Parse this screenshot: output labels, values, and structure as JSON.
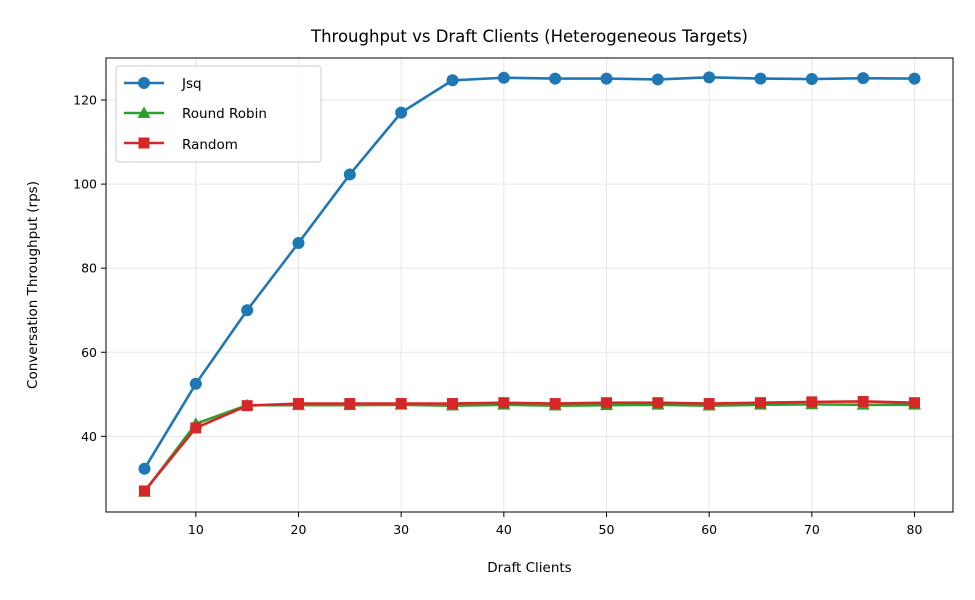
{
  "chart_data": {
    "type": "line",
    "title": "Throughput vs Draft Clients (Heterogeneous Targets)",
    "xlabel": "Draft Clients",
    "ylabel": "Conversation Throughput (rps)",
    "x": [
      5,
      10,
      15,
      20,
      25,
      30,
      35,
      40,
      45,
      50,
      55,
      60,
      65,
      70,
      75,
      80
    ],
    "xlim": [
      1.25,
      83.75
    ],
    "ylim": [
      22,
      130
    ],
    "xticks": [
      10,
      20,
      30,
      40,
      50,
      60,
      70,
      80
    ],
    "yticks": [
      40,
      60,
      80,
      100,
      120
    ],
    "grid": true,
    "legend_position": "top-left",
    "series": [
      {
        "name": "Jsq",
        "color": "#1f77b4",
        "marker": "circle",
        "values": [
          32.3,
          52.5,
          70.0,
          86.0,
          102.3,
          117.0,
          124.7,
          125.3,
          125.1,
          125.1,
          124.9,
          125.4,
          125.1,
          125.0,
          125.2,
          125.1
        ]
      },
      {
        "name": "Round Robin",
        "color": "#2ca02c",
        "marker": "triangle",
        "values": [
          26.8,
          43.0,
          47.4,
          47.4,
          47.4,
          47.5,
          47.3,
          47.5,
          47.3,
          47.4,
          47.5,
          47.3,
          47.5,
          47.6,
          47.5,
          47.5
        ]
      },
      {
        "name": "Random",
        "color": "#d62728",
        "marker": "square",
        "values": [
          27.0,
          42.0,
          47.3,
          47.8,
          47.8,
          47.8,
          47.8,
          48.0,
          47.8,
          48.0,
          48.0,
          47.8,
          48.0,
          48.2,
          48.3,
          48.0
        ]
      }
    ]
  }
}
